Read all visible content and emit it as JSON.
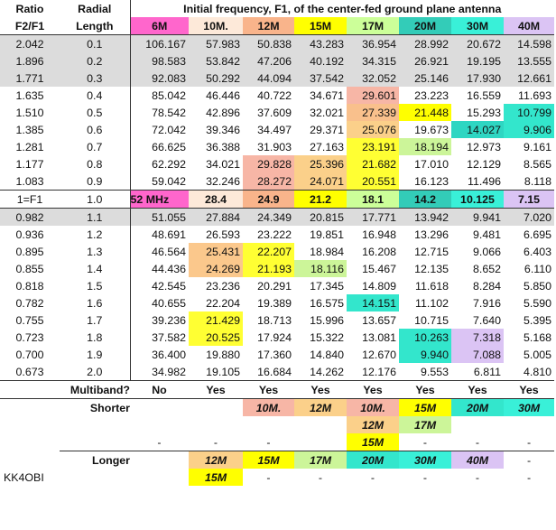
{
  "header": {
    "ratio": "Ratio",
    "ratio_sub": "F2/F1",
    "radial": "Radial",
    "radial_sub": "Length",
    "title": "Initial frequency, F1, of the center-fed ground plane antenna",
    "bands": [
      "6M",
      "10M.",
      "12M",
      "15M",
      "17M",
      "20M",
      "30M",
      "40M"
    ],
    "band_colors": [
      "#ff66cc",
      "#fde9d9",
      "#f9b48b",
      "#ffff00",
      "#ccff99",
      "#33ccb8",
      "#39f0d8",
      "#dbc4f4"
    ]
  },
  "rows": [
    {
      "ratio": "2.042",
      "radial": "0.1",
      "values": [
        "106.167",
        "57.983",
        "50.838",
        "43.283",
        "36.954",
        "28.992",
        "20.672",
        "14.598"
      ],
      "colors": [
        "",
        "",
        "",
        "",
        "",
        "",
        "",
        ""
      ],
      "gray": true
    },
    {
      "ratio": "1.896",
      "radial": "0.2",
      "values": [
        "98.583",
        "53.842",
        "47.206",
        "40.192",
        "34.315",
        "26.921",
        "19.195",
        "13.555"
      ],
      "colors": [
        "",
        "",
        "",
        "",
        "",
        "",
        "",
        ""
      ],
      "gray": true
    },
    {
      "ratio": "1.771",
      "radial": "0.3",
      "values": [
        "92.083",
        "50.292",
        "44.094",
        "37.542",
        "32.052",
        "25.146",
        "17.930",
        "12.661"
      ],
      "colors": [
        "",
        "",
        "",
        "",
        "",
        "",
        "",
        ""
      ],
      "gray": true
    },
    {
      "ratio": "1.635",
      "radial": "0.4",
      "values": [
        "85.042",
        "46.446",
        "40.722",
        "34.671",
        "29.601",
        "23.223",
        "16.559",
        "11.693"
      ],
      "colors": [
        "",
        "",
        "",
        "",
        "#f7b6a6",
        "",
        "",
        ""
      ]
    },
    {
      "ratio": "1.510",
      "radial": "0.5",
      "values": [
        "78.542",
        "42.896",
        "37.609",
        "32.021",
        "27.339",
        "21.448",
        "15.293",
        "10.799"
      ],
      "colors": [
        "",
        "",
        "",
        "",
        "#f9c08c",
        "#ffff00",
        "",
        "#33e6cc"
      ]
    },
    {
      "ratio": "1.385",
      "radial": "0.6",
      "values": [
        "72.042",
        "39.346",
        "34.497",
        "29.371",
        "25.076",
        "19.673",
        "14.027",
        "9.906"
      ],
      "colors": [
        "",
        "",
        "",
        "",
        "#fbd08a",
        "",
        "#2ed6c2",
        "#33e6cc"
      ]
    },
    {
      "ratio": "1.281",
      "radial": "0.7",
      "values": [
        "66.625",
        "36.388",
        "31.903",
        "27.163",
        "23.191",
        "18.194",
        "12.973",
        "9.161"
      ],
      "colors": [
        "",
        "",
        "",
        "",
        "#ffff33",
        "#ccf599",
        "",
        ""
      ]
    },
    {
      "ratio": "1.177",
      "radial": "0.8",
      "values": [
        "62.292",
        "34.021",
        "29.828",
        "25.396",
        "21.682",
        "17.010",
        "12.129",
        "8.565"
      ],
      "colors": [
        "",
        "",
        "#f7b6a6",
        "#fbd08a",
        "#ffff33",
        "",
        "",
        ""
      ]
    },
    {
      "ratio": "1.083",
      "radial": "0.9",
      "values": [
        "59.042",
        "32.246",
        "28.272",
        "24.071",
        "20.551",
        "16.123",
        "11.496",
        "8.118"
      ],
      "colors": [
        "",
        "",
        "#f7b6a6",
        "#fbd08a",
        "#ffff33",
        "",
        "",
        ""
      ]
    }
  ],
  "f1_row": {
    "ratio": "1=F1",
    "radial": "1.0",
    "values": [
      "52 MHz",
      "28.4",
      "24.9",
      "21.2",
      "18.1",
      "14.2",
      "10.125",
      "7.15"
    ]
  },
  "rows2": [
    {
      "ratio": "0.982",
      "radial": "1.1",
      "values": [
        "51.055",
        "27.884",
        "24.349",
        "20.815",
        "17.771",
        "13.942",
        "9.941",
        "7.020"
      ],
      "colors": [
        "",
        "",
        "",
        "",
        "",
        "",
        "",
        ""
      ],
      "gray": true
    },
    {
      "ratio": "0.936",
      "radial": "1.2",
      "values": [
        "48.691",
        "26.593",
        "23.222",
        "19.851",
        "16.948",
        "13.296",
        "9.481",
        "6.695"
      ],
      "colors": [
        "",
        "",
        "",
        "",
        "",
        "",
        "",
        ""
      ]
    },
    {
      "ratio": "0.895",
      "radial": "1.3",
      "values": [
        "46.564",
        "25.431",
        "22.207",
        "18.984",
        "16.208",
        "12.715",
        "9.066",
        "6.403"
      ],
      "colors": [
        "",
        "#fbc88c",
        "#ffff33",
        "",
        "",
        "",
        "",
        ""
      ]
    },
    {
      "ratio": "0.855",
      "radial": "1.4",
      "values": [
        "44.436",
        "24.269",
        "21.193",
        "18.116",
        "15.467",
        "12.135",
        "8.652",
        "6.110"
      ],
      "colors": [
        "",
        "#fbc88c",
        "#ffff33",
        "#ccf599",
        "",
        "",
        "",
        ""
      ]
    },
    {
      "ratio": "0.818",
      "radial": "1.5",
      "values": [
        "42.545",
        "23.236",
        "20.291",
        "17.345",
        "14.809",
        "11.618",
        "8.284",
        "5.850"
      ],
      "colors": [
        "",
        "",
        "",
        "",
        "",
        "",
        "",
        ""
      ]
    },
    {
      "ratio": "0.782",
      "radial": "1.6",
      "values": [
        "40.655",
        "22.204",
        "19.389",
        "16.575",
        "14.151",
        "11.102",
        "7.916",
        "5.590"
      ],
      "colors": [
        "",
        "",
        "",
        "",
        "#33e6cc",
        "",
        "",
        ""
      ]
    },
    {
      "ratio": "0.755",
      "radial": "1.7",
      "values": [
        "39.236",
        "21.429",
        "18.713",
        "15.996",
        "13.657",
        "10.715",
        "7.640",
        "5.395"
      ],
      "colors": [
        "",
        "#ffff33",
        "",
        "",
        "",
        "",
        "",
        ""
      ]
    },
    {
      "ratio": "0.723",
      "radial": "1.8",
      "values": [
        "37.582",
        "20.525",
        "17.924",
        "15.322",
        "13.081",
        "10.263",
        "7.318",
        "5.168"
      ],
      "colors": [
        "",
        "#ffff33",
        "",
        "",
        "",
        "#33e6cc",
        "#dbc4f4",
        ""
      ]
    },
    {
      "ratio": "0.700",
      "radial": "1.9",
      "values": [
        "36.400",
        "19.880",
        "17.360",
        "14.840",
        "12.670",
        "9.940",
        "7.088",
        "5.005"
      ],
      "colors": [
        "",
        "",
        "",
        "",
        "",
        "#33e6cc",
        "#dbc4f4",
        ""
      ]
    },
    {
      "ratio": "0.673",
      "radial": "2.0",
      "values": [
        "34.982",
        "19.105",
        "16.684",
        "14.262",
        "12.176",
        "9.553",
        "6.811",
        "4.810"
      ],
      "colors": [
        "",
        "",
        "",
        "",
        "",
        "",
        "",
        ""
      ]
    }
  ],
  "multiband": {
    "label": "Multiband?",
    "values": [
      "No",
      "Yes",
      "Yes",
      "Yes",
      "Yes",
      "Yes",
      "Yes",
      "Yes"
    ]
  },
  "shorter": {
    "label": "Shorter",
    "row1": [
      "",
      "10M.",
      "12M",
      "10M.",
      "15M",
      "20M",
      "30M"
    ],
    "row1_colors": [
      "",
      "#f7b6a6",
      "#fbd08a",
      "#f7b6a6",
      "#ffff00",
      "#33e6cc",
      "#39f0d8"
    ],
    "row2": [
      "",
      "",
      "",
      "12M",
      "17M",
      "",
      ""
    ],
    "row2_colors": [
      "",
      "",
      "",
      "#fbd08a",
      "#ccf599",
      "",
      ""
    ],
    "row3": [
      "",
      "",
      "",
      "15M",
      "",
      "",
      ""
    ],
    "row3_colors": [
      "",
      "",
      "",
      "#ffff00",
      "",
      "",
      ""
    ],
    "dashes": [
      "-",
      "-",
      "-",
      "-",
      "-",
      "-"
    ]
  },
  "longer": {
    "label": "Longer",
    "row1": [
      "12M",
      "15M",
      "17M",
      "20M",
      "30M",
      "40M"
    ],
    "row1_colors": [
      "#fbd08a",
      "#ffff00",
      "#ccf599",
      "#33e6cc",
      "#39f0d8",
      "#dbc4f4"
    ],
    "row2": [
      "15M"
    ],
    "row2_colors": [
      "#ffff00"
    ],
    "dashes": [
      "-",
      "-",
      "-",
      "-",
      "-",
      "-",
      "-"
    ]
  },
  "footer": {
    "callsign": "KK4OBI"
  }
}
